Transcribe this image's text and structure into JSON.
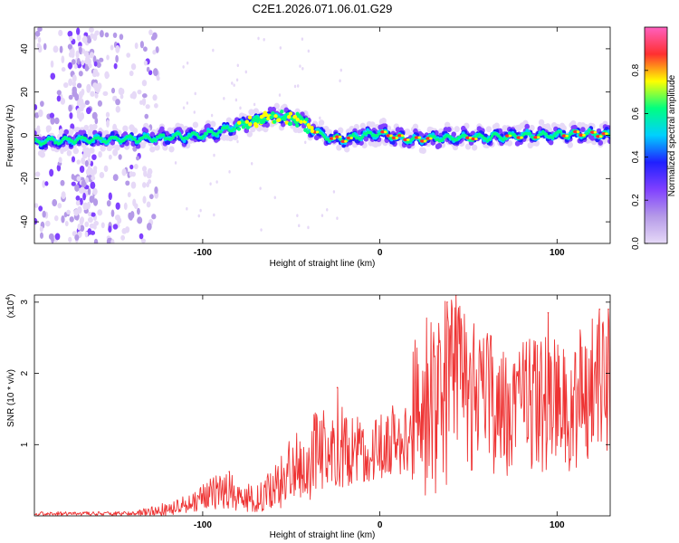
{
  "title": "C2E1.2026.071.06.01.G29",
  "colors": {
    "snr_line": "#ee3333",
    "spectrogram_background": "#ffffff",
    "colormap": [
      "#e6d9f7",
      "#b59ae8",
      "#8040ff",
      "#2020ff",
      "#00d0ff",
      "#00ff80",
      "#ffff00",
      "#ff3030",
      "#ff60c0"
    ]
  },
  "chart_data": [
    {
      "type": "heatmap",
      "name": "spectrogram",
      "xlabel": "Height of straight line (km)",
      "ylabel": "Frequency (Hz)",
      "xlim": [
        -195,
        130
      ],
      "ylim": [
        -50,
        50
      ],
      "xticks": [
        -100,
        0,
        100
      ],
      "xtick_labels": [
        "-100",
        "0",
        "100"
      ],
      "yticks": [
        -40,
        -20,
        0,
        20,
        40
      ],
      "ytick_labels": [
        "-40",
        "-20",
        "0",
        "20",
        "40"
      ],
      "colorbar": {
        "label": "Normalized spectral amplitude",
        "range": [
          0,
          1
        ],
        "ticks": [
          0.0,
          0.2,
          0.4,
          0.6,
          0.8
        ],
        "tick_labels": [
          "0.0",
          "0.2",
          "0.4",
          "0.6",
          "0.8"
        ]
      },
      "ridge": {
        "x_km": [
          -195,
          -170,
          -150,
          -120,
          -100,
          -85,
          -75,
          -65,
          -58,
          -50,
          -45,
          -40,
          -35,
          -30,
          -20,
          -10,
          0,
          10,
          20,
          40,
          60,
          80,
          100,
          115,
          130
        ],
        "freq_hz": [
          -3,
          -2,
          -2,
          -1,
          0,
          3,
          6,
          8,
          9,
          8,
          7,
          4,
          1,
          -1,
          -2,
          0,
          1,
          -1,
          -2,
          -1,
          -1,
          0,
          0,
          1,
          0
        ]
      },
      "scatter_regions": [
        {
          "x_range": [
            -195,
            -125
          ],
          "freq_range": [
            -50,
            50
          ],
          "intensity": 0.25
        },
        {
          "x_range": [
            -175,
            -160
          ],
          "freq_range": [
            -50,
            50
          ],
          "intensity": 0.3
        }
      ]
    },
    {
      "type": "line",
      "name": "snr",
      "xlabel": "Height of straight line (km)",
      "ylabel": "SNR (10 * v/v)",
      "multiplier_label": "(x10",
      "multiplier_exp": "4",
      "xlim": [
        -195,
        130
      ],
      "ylim": [
        0,
        3.1
      ],
      "xticks": [
        -100,
        0,
        100
      ],
      "xtick_labels": [
        "-100",
        "0",
        "100"
      ],
      "yticks": [
        1,
        2,
        3
      ],
      "ytick_labels": [
        "1",
        "2",
        "3"
      ],
      "envelope": {
        "x_km": [
          -195,
          -140,
          -120,
          -105,
          -95,
          -85,
          -75,
          -65,
          -55,
          -45,
          -35,
          -25,
          -15,
          -5,
          5,
          15,
          22,
          30,
          40,
          50,
          60,
          70,
          80,
          90,
          100,
          110,
          120,
          130
        ],
        "mean": [
          0.03,
          0.03,
          0.08,
          0.18,
          0.28,
          0.3,
          0.22,
          0.25,
          0.5,
          0.6,
          0.75,
          0.85,
          0.9,
          0.85,
          0.95,
          1.0,
          1.6,
          1.8,
          1.9,
          1.8,
          1.7,
          1.65,
          1.65,
          1.6,
          1.65,
          1.6,
          1.55,
          1.6
        ],
        "max": [
          0.06,
          0.06,
          0.2,
          0.35,
          0.55,
          0.6,
          0.45,
          0.5,
          1.0,
          1.2,
          1.5,
          1.6,
          1.45,
          1.3,
          1.6,
          1.6,
          2.9,
          3.05,
          3.1,
          2.8,
          2.6,
          2.6,
          2.5,
          2.5,
          2.6,
          2.5,
          2.9,
          2.8
        ],
        "min": [
          0.0,
          0.0,
          0.0,
          0.05,
          0.1,
          0.08,
          0.05,
          0.05,
          0.1,
          0.2,
          0.25,
          0.35,
          0.45,
          0.45,
          0.55,
          0.6,
          0.4,
          0.1,
          0.5,
          0.6,
          0.6,
          0.55,
          0.6,
          0.6,
          0.65,
          0.6,
          0.6,
          0.9
        ]
      },
      "peaks": [
        {
          "x": 43,
          "y": 3.1
        },
        {
          "x": 38,
          "y": 3.0
        },
        {
          "x": 95,
          "y": 2.85
        },
        {
          "x": 124,
          "y": 2.9
        },
        {
          "x": 129,
          "y": 2.9
        },
        {
          "x": -85,
          "y": 0.62
        },
        {
          "x": -24,
          "y": 1.8
        }
      ]
    }
  ]
}
